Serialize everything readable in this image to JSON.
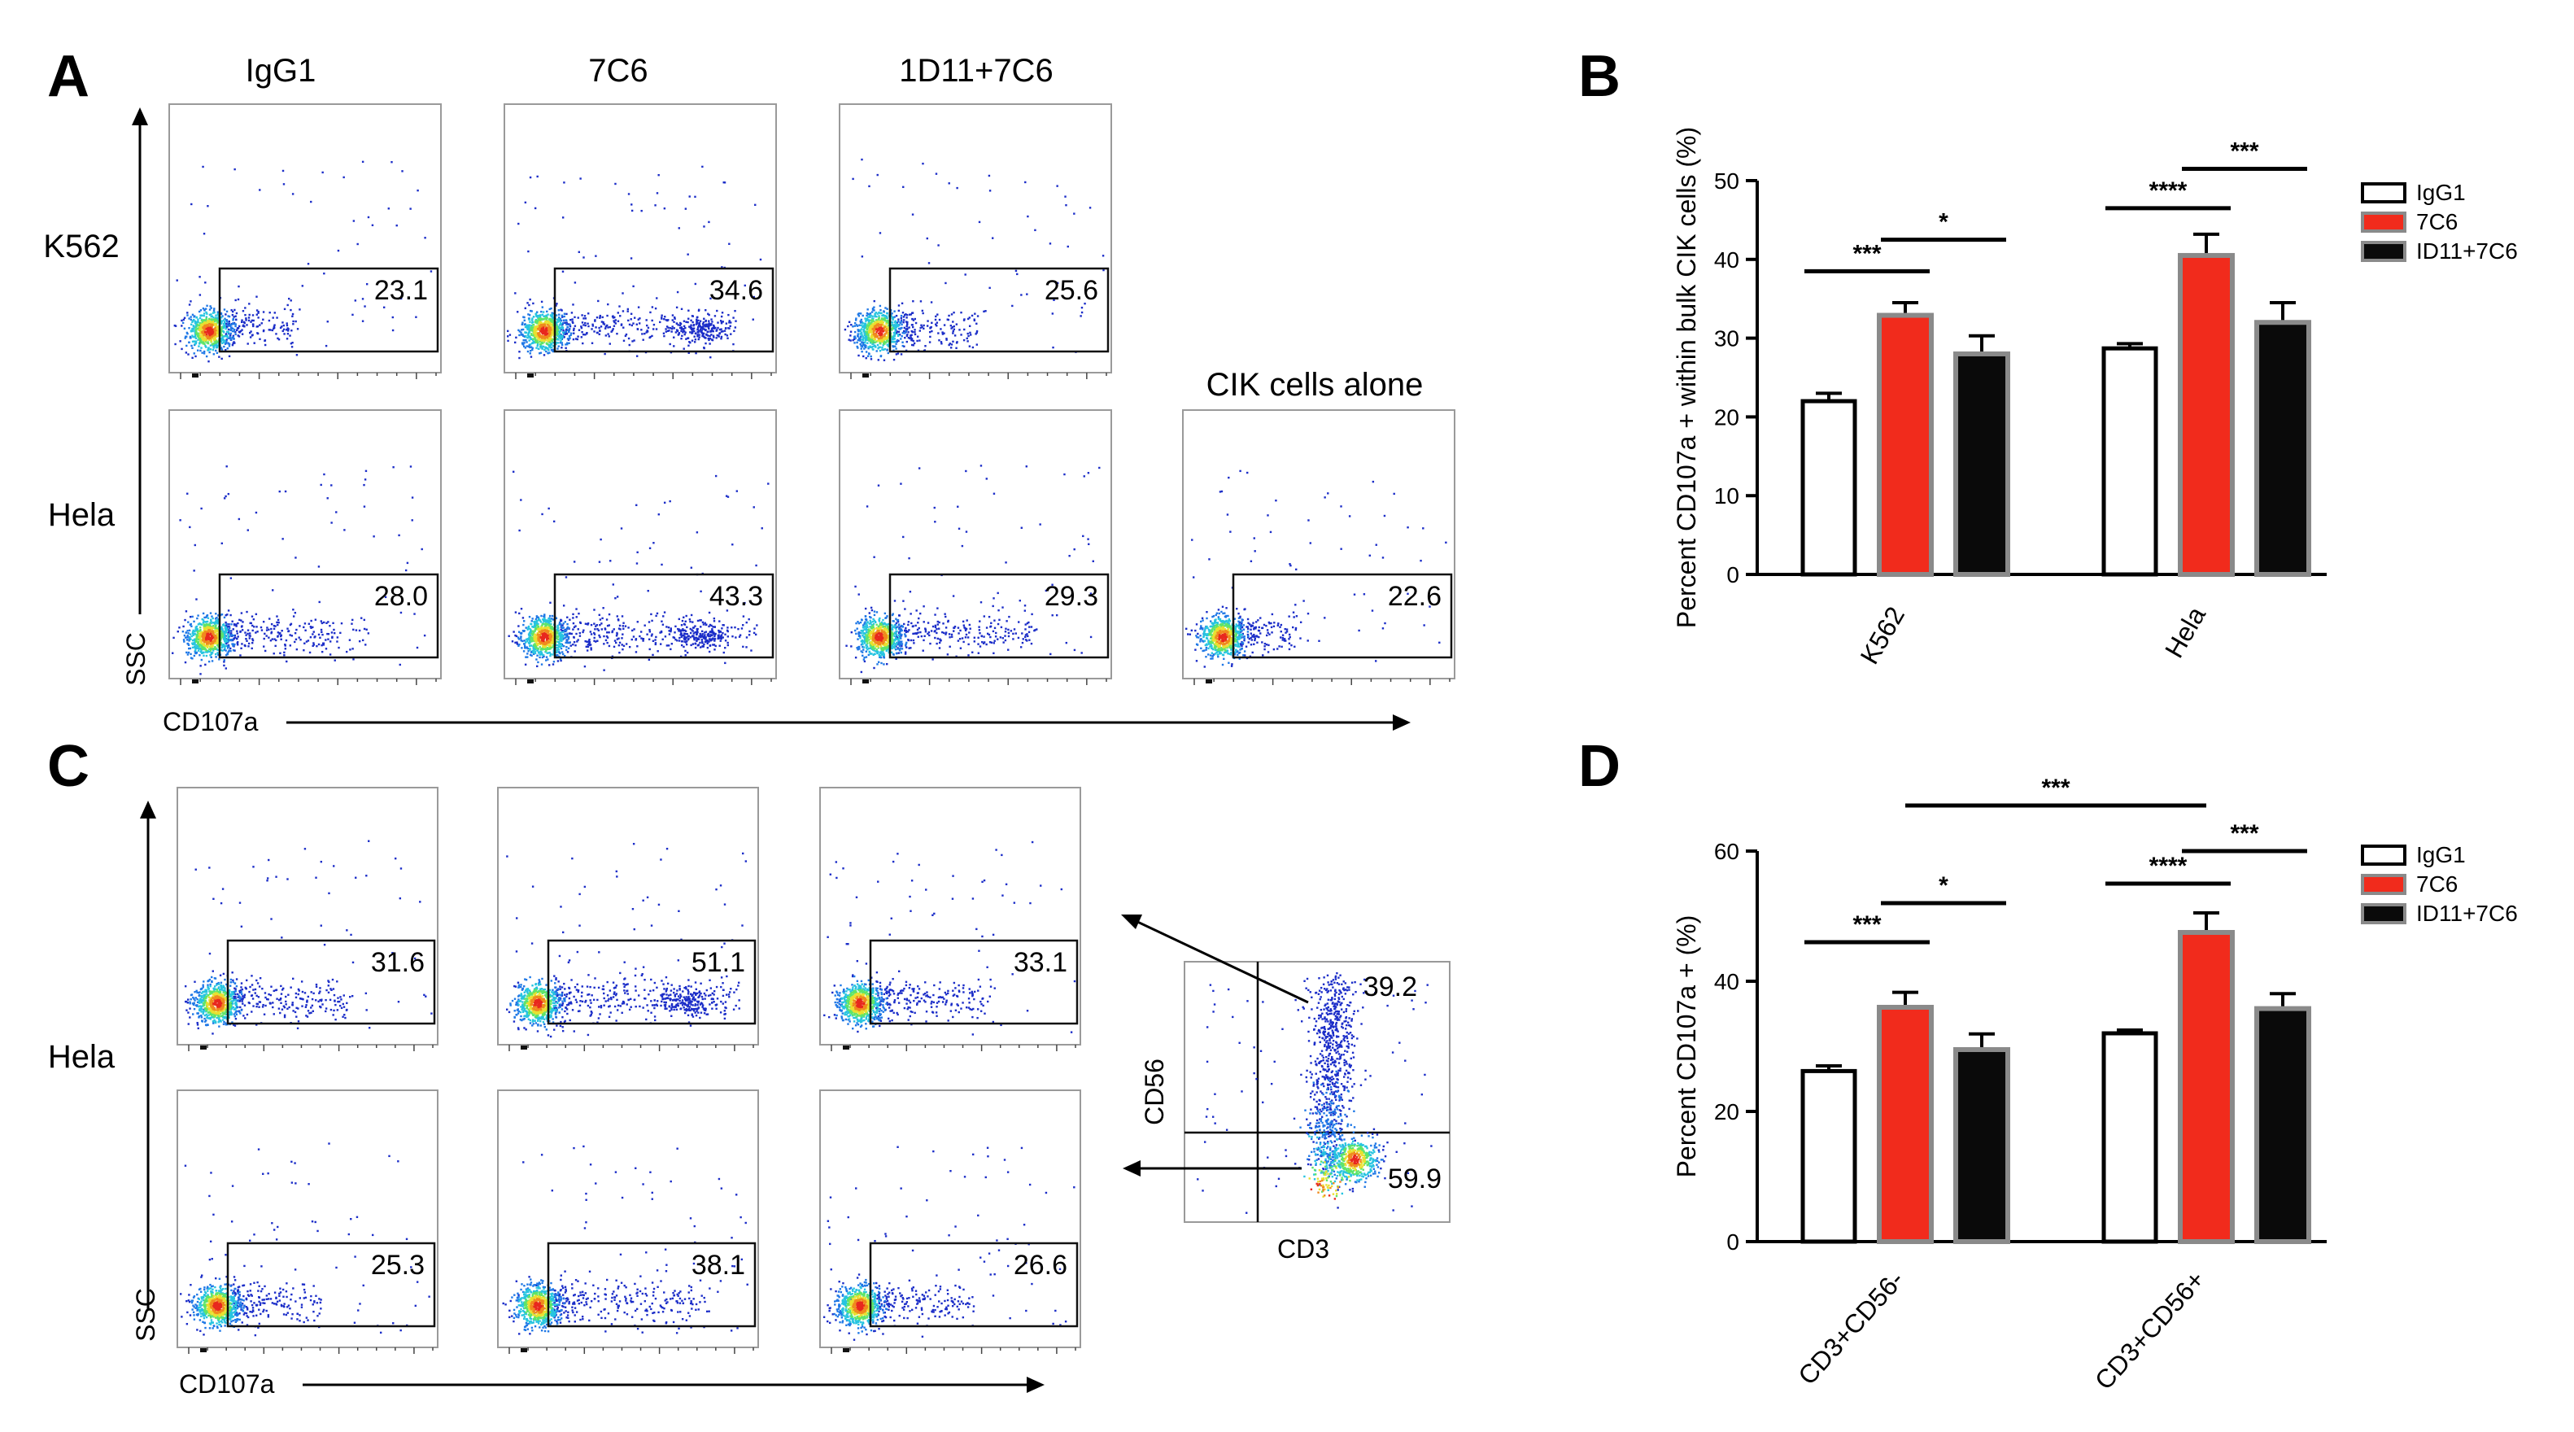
{
  "colors": {
    "igg1": "#ffffff",
    "c7c6": "#f12b1c",
    "d11_7c6": "#0a0a0a",
    "bar_outline_red": "#8a8a8a",
    "bar_outline_black": "#8a8a8a",
    "density": [
      "#1b2dc8",
      "#1f78e6",
      "#27c4e0",
      "#5ee46a",
      "#e8e030",
      "#f08a1e",
      "#e8281e"
    ]
  },
  "panels": {
    "A": "A",
    "B": "B",
    "C": "C",
    "D": "D"
  },
  "panel_a": {
    "columns": [
      "IgG1",
      "7C6",
      "1D11+7C6"
    ],
    "rows": [
      "K562",
      "Hela"
    ],
    "extra_title": "CIK cells alone",
    "y_axis": "SSC",
    "x_axis": "CD107a",
    "gates": [
      {
        "row": 0,
        "col": 0,
        "value": "23.1",
        "spread": 0.35
      },
      {
        "row": 0,
        "col": 1,
        "value": "34.6",
        "spread": 0.85
      },
      {
        "row": 0,
        "col": 2,
        "value": "25.6",
        "spread": 0.4
      },
      {
        "row": 1,
        "col": 0,
        "value": "28.0",
        "spread": 0.7
      },
      {
        "row": 1,
        "col": 1,
        "value": "43.3",
        "spread": 0.95
      },
      {
        "row": 1,
        "col": 2,
        "value": "29.3",
        "spread": 0.7
      },
      {
        "row": 1,
        "col": 3,
        "value": "22.6",
        "spread": 0.3
      }
    ]
  },
  "panel_c": {
    "row_label": "Hela",
    "y_axis": "SSC",
    "x_axis": "CD107a",
    "gates": [
      {
        "row": 0,
        "col": 0,
        "value": "31.6",
        "spread": 0.6
      },
      {
        "row": 0,
        "col": 1,
        "value": "51.1",
        "spread": 0.95
      },
      {
        "row": 0,
        "col": 2,
        "value": "33.1",
        "spread": 0.6
      },
      {
        "row": 1,
        "col": 0,
        "value": "25.3",
        "spread": 0.45
      },
      {
        "row": 1,
        "col": 1,
        "value": "38.1",
        "spread": 0.8
      },
      {
        "row": 1,
        "col": 2,
        "value": "26.6",
        "spread": 0.5
      }
    ],
    "quad_plot": {
      "y_axis": "CD56",
      "x_axis": "CD3",
      "upper_value": "39.2",
      "lower_value": "59.9"
    }
  },
  "chart_data": [
    {
      "id": "B",
      "type": "bar",
      "title": "",
      "ylabel": "Percent CD107a + within bulk CIK cells (%)",
      "xlabel": "",
      "categories": [
        "K562",
        "Hela"
      ],
      "ylim": [
        0,
        50
      ],
      "yticks": [
        "0",
        "10",
        "20",
        "30",
        "40",
        "50"
      ],
      "series": [
        {
          "name": "IgG1",
          "values": [
            22,
            28.7
          ],
          "errors": [
            1.0,
            0.6
          ]
        },
        {
          "name": "7C6",
          "values": [
            32.9,
            40.5
          ],
          "errors": [
            1.6,
            2.7
          ]
        },
        {
          "name": "ID11+7C6",
          "values": [
            28,
            32
          ],
          "errors": [
            2.3,
            2.5
          ]
        }
      ],
      "significance": [
        {
          "group": 0,
          "from": 0,
          "to": 1,
          "level": 38.5,
          "label": "***"
        },
        {
          "group": 0,
          "from": 1,
          "to": 2,
          "level": 42.5,
          "label": "*"
        },
        {
          "group": 1,
          "from": 0,
          "to": 1,
          "level": 46.5,
          "label": "****"
        },
        {
          "group": 1,
          "from": 1,
          "to": 2,
          "level": 51.5,
          "label": "***"
        }
      ],
      "legend": [
        "IgG1",
        "7C6",
        "ID11+7C6"
      ],
      "legend_position": "top-right"
    },
    {
      "id": "D",
      "type": "bar",
      "title": "",
      "ylabel": "Percent CD107a + (%)",
      "xlabel": "",
      "categories": [
        "CD3+CD56-",
        "CD3+CD56+"
      ],
      "ylim": [
        0,
        60
      ],
      "yticks": [
        "0",
        "20",
        "40",
        "60"
      ],
      "series": [
        {
          "name": "IgG1",
          "values": [
            26.2,
            32
          ],
          "errors": [
            0.8,
            0.5
          ]
        },
        {
          "name": "7C6",
          "values": [
            36,
            47.5
          ],
          "errors": [
            2.3,
            3.0
          ]
        },
        {
          "name": "ID11+7C6",
          "values": [
            29.5,
            35.8
          ],
          "errors": [
            2.4,
            2.3
          ]
        }
      ],
      "significance": [
        {
          "group": 0,
          "from": 0,
          "to": 1,
          "level": 46,
          "label": "***"
        },
        {
          "group": 0,
          "from": 1,
          "to": 2,
          "level": 52,
          "label": "*"
        },
        {
          "group": 1,
          "from": 0,
          "to": 1,
          "level": 55,
          "label": "****"
        },
        {
          "group": 1,
          "from": 1,
          "to": 2,
          "level": 60,
          "label": "***"
        },
        {
          "span": true,
          "fromGroup": 0,
          "fromBar": 1,
          "toGroup": 1,
          "toBar": 1,
          "level": 67,
          "label": "***"
        }
      ],
      "legend": [
        "IgG1",
        "7C6",
        "ID11+7C6"
      ],
      "legend_position": "top-right"
    }
  ]
}
